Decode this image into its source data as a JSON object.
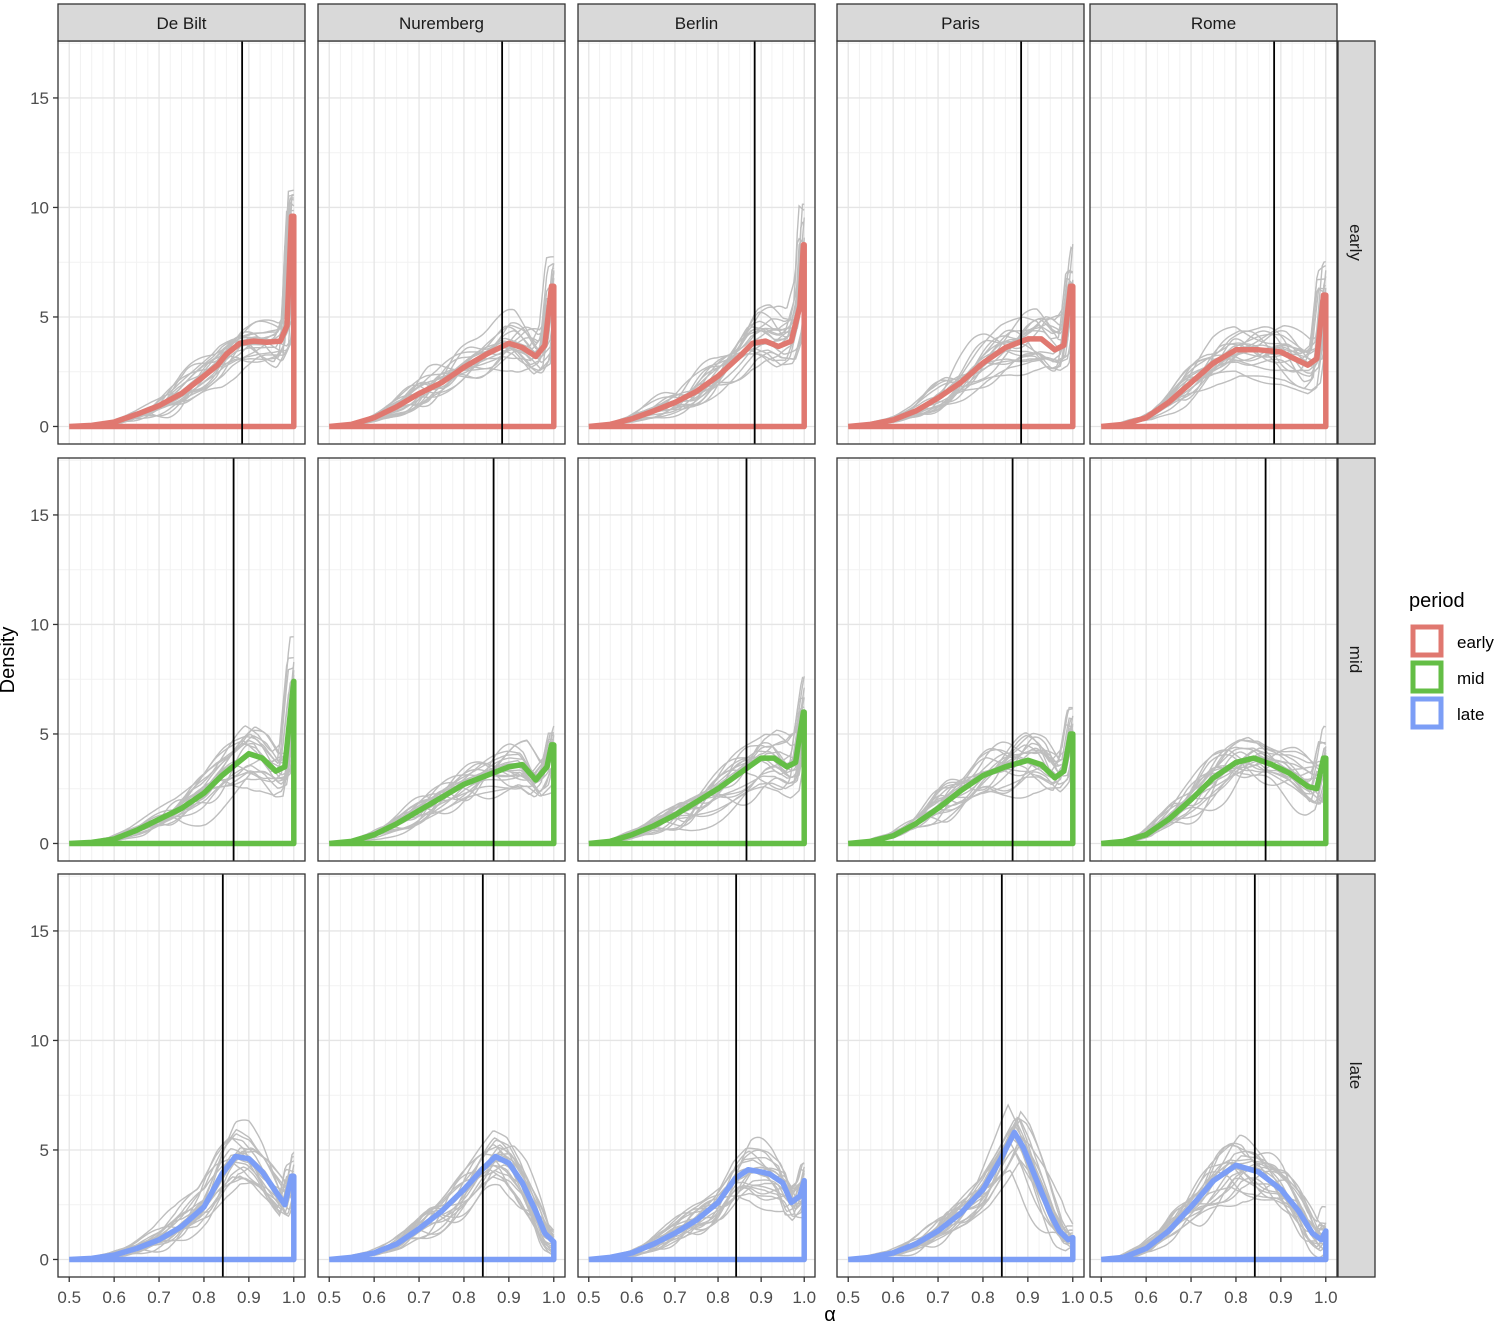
{
  "chart_data": {
    "type": "line",
    "description_kind": "faceted density plot",
    "facet_columns": [
      "De Bilt",
      "Nuremberg",
      "Berlin",
      "Paris",
      "Rome"
    ],
    "facet_rows": [
      "early",
      "mid",
      "late"
    ],
    "xlabel": "α",
    "ylabel": "Density",
    "xlim": [
      0.5,
      1.0
    ],
    "ylim": [
      0,
      17.5
    ],
    "x_ticks": [
      0.5,
      0.6,
      0.7,
      0.8,
      0.9,
      1.0
    ],
    "x_tick_labels": [
      "0.5",
      "0.6",
      "0.7",
      "0.8",
      "0.9",
      "1.0"
    ],
    "y_ticks": [
      0,
      5,
      10,
      15
    ],
    "y_tick_labels": [
      "0",
      "5",
      "10",
      "15"
    ],
    "grid": true,
    "legend": {
      "title": "period",
      "placement": "right",
      "entries": [
        {
          "label": "early",
          "color": "#E07870"
        },
        {
          "label": "mid",
          "color": "#64BE46"
        },
        {
          "label": "late",
          "color": "#7C9EF6"
        }
      ]
    },
    "colors": {
      "early": "#E07870",
      "mid": "#64BE46",
      "late": "#7C9EF6",
      "ensemble": "#BEBEBE",
      "vline": "#000000",
      "strip_fill": "#D9D9D9"
    },
    "vlines": {
      "early": 0.885,
      "mid": 0.866,
      "late": 0.842
    },
    "ensemble_members_per_panel": 20,
    "mean_curves": {
      "early": {
        "De Bilt": [
          [
            0.5,
            0
          ],
          [
            0.55,
            0.05
          ],
          [
            0.6,
            0.2
          ],
          [
            0.65,
            0.55
          ],
          [
            0.7,
            0.95
          ],
          [
            0.75,
            1.5
          ],
          [
            0.8,
            2.3
          ],
          [
            0.83,
            2.8
          ],
          [
            0.85,
            3.3
          ],
          [
            0.88,
            3.8
          ],
          [
            0.91,
            3.9
          ],
          [
            0.94,
            3.85
          ],
          [
            0.97,
            3.9
          ],
          [
            0.985,
            4.6
          ],
          [
            0.995,
            9.6
          ],
          [
            1.0,
            9.6
          ]
        ],
        "Nuremberg": [
          [
            0.5,
            0
          ],
          [
            0.55,
            0.1
          ],
          [
            0.6,
            0.4
          ],
          [
            0.65,
            0.9
          ],
          [
            0.7,
            1.5
          ],
          [
            0.75,
            2.0
          ],
          [
            0.8,
            2.7
          ],
          [
            0.85,
            3.3
          ],
          [
            0.9,
            3.8
          ],
          [
            0.93,
            3.6
          ],
          [
            0.96,
            3.2
          ],
          [
            0.98,
            3.7
          ],
          [
            0.995,
            6.4
          ],
          [
            1.0,
            6.4
          ]
        ],
        "Berlin": [
          [
            0.5,
            0
          ],
          [
            0.55,
            0.1
          ],
          [
            0.6,
            0.35
          ],
          [
            0.65,
            0.7
          ],
          [
            0.7,
            1.1
          ],
          [
            0.75,
            1.6
          ],
          [
            0.8,
            2.3
          ],
          [
            0.85,
            3.2
          ],
          [
            0.88,
            3.8
          ],
          [
            0.91,
            3.9
          ],
          [
            0.94,
            3.65
          ],
          [
            0.97,
            3.9
          ],
          [
            0.99,
            5.5
          ],
          [
            0.998,
            8.3
          ],
          [
            1.0,
            8.3
          ]
        ],
        "Paris": [
          [
            0.5,
            0
          ],
          [
            0.55,
            0.1
          ],
          [
            0.6,
            0.3
          ],
          [
            0.65,
            0.7
          ],
          [
            0.7,
            1.3
          ],
          [
            0.75,
            2.0
          ],
          [
            0.8,
            2.9
          ],
          [
            0.85,
            3.6
          ],
          [
            0.9,
            4.0
          ],
          [
            0.93,
            4.0
          ],
          [
            0.96,
            3.5
          ],
          [
            0.98,
            3.7
          ],
          [
            0.995,
            6.4
          ],
          [
            1.0,
            6.4
          ]
        ],
        "Rome": [
          [
            0.5,
            0
          ],
          [
            0.55,
            0.1
          ],
          [
            0.6,
            0.4
          ],
          [
            0.65,
            1.1
          ],
          [
            0.7,
            2.0
          ],
          [
            0.75,
            2.9
          ],
          [
            0.8,
            3.5
          ],
          [
            0.85,
            3.5
          ],
          [
            0.9,
            3.4
          ],
          [
            0.93,
            3.1
          ],
          [
            0.96,
            2.8
          ],
          [
            0.98,
            3.1
          ],
          [
            0.995,
            6.0
          ],
          [
            1.0,
            6.0
          ]
        ]
      },
      "mid": {
        "De Bilt": [
          [
            0.5,
            0
          ],
          [
            0.55,
            0.05
          ],
          [
            0.6,
            0.2
          ],
          [
            0.65,
            0.6
          ],
          [
            0.7,
            1.1
          ],
          [
            0.75,
            1.6
          ],
          [
            0.8,
            2.3
          ],
          [
            0.84,
            3.1
          ],
          [
            0.87,
            3.6
          ],
          [
            0.9,
            4.1
          ],
          [
            0.93,
            3.9
          ],
          [
            0.96,
            3.3
          ],
          [
            0.98,
            3.5
          ],
          [
            0.99,
            5.5
          ],
          [
            1.0,
            7.4
          ]
        ],
        "Nuremberg": [
          [
            0.5,
            0
          ],
          [
            0.55,
            0.1
          ],
          [
            0.6,
            0.4
          ],
          [
            0.65,
            0.9
          ],
          [
            0.7,
            1.5
          ],
          [
            0.75,
            2.1
          ],
          [
            0.8,
            2.7
          ],
          [
            0.85,
            3.1
          ],
          [
            0.9,
            3.5
          ],
          [
            0.93,
            3.6
          ],
          [
            0.96,
            2.9
          ],
          [
            0.985,
            3.5
          ],
          [
            0.995,
            4.5
          ],
          [
            1.0,
            4.5
          ]
        ],
        "Berlin": [
          [
            0.5,
            0
          ],
          [
            0.55,
            0.1
          ],
          [
            0.6,
            0.4
          ],
          [
            0.65,
            0.8
          ],
          [
            0.7,
            1.3
          ],
          [
            0.75,
            1.9
          ],
          [
            0.8,
            2.5
          ],
          [
            0.85,
            3.2
          ],
          [
            0.9,
            3.9
          ],
          [
            0.93,
            3.9
          ],
          [
            0.96,
            3.5
          ],
          [
            0.98,
            3.7
          ],
          [
            0.99,
            5.0
          ],
          [
            0.998,
            6.0
          ],
          [
            1.0,
            6.0
          ]
        ],
        "Paris": [
          [
            0.5,
            0
          ],
          [
            0.55,
            0.1
          ],
          [
            0.6,
            0.35
          ],
          [
            0.65,
            0.9
          ],
          [
            0.7,
            1.6
          ],
          [
            0.75,
            2.4
          ],
          [
            0.8,
            3.1
          ],
          [
            0.85,
            3.5
          ],
          [
            0.9,
            3.8
          ],
          [
            0.93,
            3.6
          ],
          [
            0.96,
            3.0
          ],
          [
            0.98,
            3.3
          ],
          [
            0.995,
            5.0
          ],
          [
            1.0,
            5.0
          ]
        ],
        "Rome": [
          [
            0.5,
            0
          ],
          [
            0.55,
            0.1
          ],
          [
            0.6,
            0.4
          ],
          [
            0.65,
            1.1
          ],
          [
            0.7,
            2.0
          ],
          [
            0.75,
            3.0
          ],
          [
            0.8,
            3.7
          ],
          [
            0.84,
            3.9
          ],
          [
            0.88,
            3.6
          ],
          [
            0.92,
            3.2
          ],
          [
            0.96,
            2.6
          ],
          [
            0.98,
            2.5
          ],
          [
            0.995,
            3.9
          ],
          [
            1.0,
            3.9
          ]
        ]
      },
      "late": {
        "De Bilt": [
          [
            0.5,
            0
          ],
          [
            0.55,
            0.05
          ],
          [
            0.6,
            0.2
          ],
          [
            0.65,
            0.5
          ],
          [
            0.7,
            0.9
          ],
          [
            0.75,
            1.5
          ],
          [
            0.8,
            2.4
          ],
          [
            0.84,
            3.9
          ],
          [
            0.87,
            4.7
          ],
          [
            0.9,
            4.6
          ],
          [
            0.93,
            4.0
          ],
          [
            0.96,
            3.1
          ],
          [
            0.98,
            2.5
          ],
          [
            0.995,
            3.8
          ],
          [
            1.0,
            3.8
          ]
        ],
        "Nuremberg": [
          [
            0.5,
            0
          ],
          [
            0.55,
            0.1
          ],
          [
            0.6,
            0.3
          ],
          [
            0.65,
            0.7
          ],
          [
            0.7,
            1.4
          ],
          [
            0.75,
            2.2
          ],
          [
            0.8,
            3.2
          ],
          [
            0.84,
            4.1
          ],
          [
            0.87,
            4.7
          ],
          [
            0.9,
            4.4
          ],
          [
            0.93,
            3.5
          ],
          [
            0.96,
            2.2
          ],
          [
            0.98,
            1.2
          ],
          [
            1.0,
            0.8
          ]
        ],
        "Berlin": [
          [
            0.5,
            0
          ],
          [
            0.55,
            0.1
          ],
          [
            0.6,
            0.3
          ],
          [
            0.65,
            0.7
          ],
          [
            0.7,
            1.2
          ],
          [
            0.75,
            1.8
          ],
          [
            0.8,
            2.6
          ],
          [
            0.84,
            3.7
          ],
          [
            0.87,
            4.1
          ],
          [
            0.9,
            4.0
          ],
          [
            0.92,
            3.9
          ],
          [
            0.95,
            3.5
          ],
          [
            0.97,
            2.6
          ],
          [
            0.99,
            2.9
          ],
          [
            1.0,
            3.6
          ]
        ],
        "Paris": [
          [
            0.5,
            0
          ],
          [
            0.55,
            0.1
          ],
          [
            0.6,
            0.3
          ],
          [
            0.65,
            0.7
          ],
          [
            0.7,
            1.3
          ],
          [
            0.75,
            2.1
          ],
          [
            0.8,
            3.2
          ],
          [
            0.84,
            4.6
          ],
          [
            0.87,
            5.8
          ],
          [
            0.89,
            5.1
          ],
          [
            0.92,
            3.6
          ],
          [
            0.95,
            2.1
          ],
          [
            0.97,
            1.3
          ],
          [
            0.99,
            0.9
          ],
          [
            1.0,
            1.0
          ]
        ],
        "Rome": [
          [
            0.5,
            0
          ],
          [
            0.55,
            0.1
          ],
          [
            0.6,
            0.5
          ],
          [
            0.65,
            1.3
          ],
          [
            0.7,
            2.4
          ],
          [
            0.75,
            3.6
          ],
          [
            0.8,
            4.3
          ],
          [
            0.85,
            4.0
          ],
          [
            0.9,
            3.2
          ],
          [
            0.94,
            2.2
          ],
          [
            0.97,
            1.2
          ],
          [
            0.99,
            0.9
          ],
          [
            1.0,
            1.3
          ]
        ]
      }
    }
  }
}
